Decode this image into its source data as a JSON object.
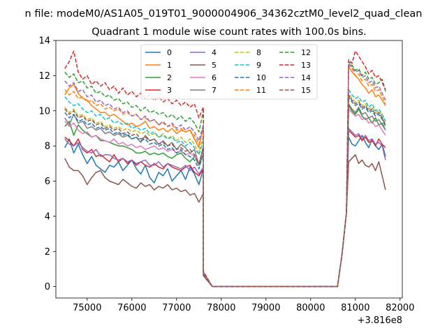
{
  "chart_data": {
    "type": "line",
    "suptitle": "n file: modeM0/AS1A05_019T01_9000004906_34362cztM0_level2_quad_clean",
    "title": "Quadrant 1 module wise count rates with 100.0s bins.",
    "xlabel": "",
    "ylabel": "",
    "x_offset_label": "+3.816e8",
    "xlim": [
      74300,
      82050
    ],
    "ylim": [
      -0.65,
      14.0
    ],
    "xticks": [
      75000,
      76000,
      77000,
      78000,
      79000,
      80000,
      81000,
      82000
    ],
    "xtick_labels": [
      "75000",
      "76000",
      "77000",
      "78000",
      "79000",
      "80000",
      "81000",
      "82000"
    ],
    "yticks": [
      0,
      2,
      4,
      6,
      8,
      10,
      12,
      14
    ],
    "ytick_labels": [
      "0",
      "2",
      "4",
      "6",
      "8",
      "10",
      "12",
      "14"
    ],
    "grid": false,
    "legend_position": "upper center",
    "x_segments": {
      "segment1": {
        "start": 74500,
        "step": 100,
        "count": 32,
        "transition": [
          77600,
          77700,
          77800
        ]
      },
      "gap_zero": {
        "start": 77800,
        "end": 80600,
        "value": 0
      },
      "segment2": {
        "start": 80600,
        "step": 100,
        "count": 12,
        "transition": [
          80600,
          80700,
          80800
        ]
      }
    },
    "series": [
      {
        "name": "0",
        "color": "#1f77b4",
        "dash": "solid",
        "seg1": [
          7.9,
          8.4,
          7.6,
          8.1,
          7.5,
          7.0,
          7.4,
          6.9,
          6.7,
          6.5,
          6.9,
          6.8,
          7.1,
          6.6,
          6.9,
          7.2,
          6.7,
          6.4,
          6.9,
          6.2,
          5.9,
          6.5,
          6.3,
          6.7,
          6.0,
          6.3,
          6.6,
          6.1,
          6.8,
          6.4,
          5.8,
          6.7
        ],
        "seg2": [
          8.5,
          8.1,
          8.0,
          8.3,
          8.6,
          8.2,
          7.9,
          8.4,
          8.0,
          7.8,
          8.1,
          7.4
        ]
      },
      {
        "name": "1",
        "color": "#ff7f0e",
        "dash": "solid",
        "seg1": [
          10.9,
          11.3,
          11.5,
          11.0,
          10.7,
          10.6,
          10.3,
          10.1,
          9.9,
          9.9,
          9.7,
          9.8,
          9.6,
          9.4,
          9.2,
          9.3,
          9.1,
          9.2,
          9.4,
          9.0,
          9.1,
          8.9,
          9.0,
          8.8,
          9.0,
          8.7,
          8.9,
          8.8,
          8.9,
          8.4,
          7.9,
          9.2
        ],
        "seg2": [
          12.5,
          12.2,
          12.0,
          11.8,
          11.5,
          11.3,
          11.0,
          11.2,
          10.8,
          10.9,
          10.6,
          10.3
        ]
      },
      {
        "name": "2",
        "color": "#2ca02c",
        "dash": "solid",
        "seg1": [
          9.1,
          9.4,
          8.6,
          9.2,
          8.9,
          8.7,
          8.5,
          8.6,
          8.3,
          8.3,
          8.2,
          8.1,
          8.0,
          8.0,
          7.9,
          7.8,
          7.6,
          7.6,
          7.7,
          7.5,
          7.6,
          7.5,
          7.6,
          7.4,
          7.3,
          7.5,
          7.6,
          7.3,
          7.1,
          7.4,
          6.9,
          7.5
        ],
        "seg2": [
          10.3,
          10.0,
          9.8,
          10.1,
          9.7,
          9.5,
          9.6,
          9.3,
          9.6,
          9.2,
          9.3,
          8.9
        ]
      },
      {
        "name": "3",
        "color": "#d62728",
        "dash": "solid",
        "seg1": [
          8.5,
          8.3,
          8.0,
          8.4,
          7.8,
          7.6,
          7.8,
          7.4,
          7.5,
          7.3,
          7.1,
          7.5,
          7.1,
          7.3,
          7.0,
          7.2,
          6.9,
          7.1,
          6.9,
          6.8,
          7.0,
          6.8,
          6.7,
          7.0,
          6.8,
          6.7,
          6.6,
          6.8,
          6.9,
          6.5,
          6.3,
          6.7
        ],
        "seg2": [
          8.9,
          8.7,
          8.5,
          8.6,
          8.3,
          8.5,
          8.2,
          8.3,
          8.0,
          8.4,
          8.1,
          7.9
        ]
      },
      {
        "name": "4",
        "color": "#9467bd",
        "dash": "solid",
        "seg1": [
          8.4,
          8.1,
          8.0,
          8.2,
          7.9,
          7.7,
          7.6,
          7.8,
          7.4,
          7.5,
          7.5,
          7.3,
          7.2,
          7.3,
          7.1,
          7.2,
          7.0,
          7.1,
          7.2,
          6.9,
          6.9,
          7.1,
          6.8,
          7.0,
          6.9,
          6.8,
          6.7,
          6.9,
          6.6,
          6.8,
          6.4,
          6.8
        ],
        "seg2": [
          9.0,
          8.8,
          8.6,
          8.7,
          8.4,
          8.6,
          8.3,
          8.4,
          8.1,
          8.2,
          8.0,
          7.2
        ]
      },
      {
        "name": "5",
        "color": "#8c564b",
        "dash": "solid",
        "seg1": [
          7.3,
          6.8,
          6.6,
          6.6,
          6.3,
          5.8,
          6.2,
          6.5,
          6.6,
          6.2,
          6.0,
          5.9,
          5.8,
          6.1,
          5.9,
          5.7,
          5.6,
          5.9,
          5.7,
          5.8,
          5.5,
          5.7,
          5.6,
          5.8,
          5.5,
          5.6,
          5.4,
          5.5,
          5.2,
          5.3,
          4.8,
          5.3
        ],
        "seg2": [
          7.1,
          7.3,
          7.5,
          7.0,
          7.2,
          6.9,
          6.8,
          7.0,
          6.6,
          7.1,
          6.3,
          5.5
        ]
      },
      {
        "name": "6",
        "color": "#e377c2",
        "dash": "solid",
        "seg1": [
          9.4,
          9.1,
          9.3,
          8.9,
          8.7,
          8.8,
          8.5,
          8.6,
          8.4,
          8.3,
          8.2,
          8.4,
          8.1,
          8.2,
          8.0,
          8.1,
          7.9,
          8.0,
          7.8,
          7.9,
          8.0,
          7.8,
          7.9,
          7.7,
          7.8,
          7.6,
          7.7,
          7.5,
          7.6,
          7.4,
          7.0,
          7.8
        ],
        "seg2": [
          10.1,
          9.9,
          9.7,
          9.8,
          9.5,
          9.6,
          9.3,
          9.4,
          9.1,
          9.2,
          8.9,
          8.6
        ]
      },
      {
        "name": "7",
        "color": "#7f7f7f",
        "dash": "solid",
        "seg1": [
          9.6,
          9.2,
          9.8,
          9.3,
          9.4,
          9.0,
          9.1,
          8.9,
          9.0,
          8.7,
          8.8,
          8.6,
          8.7,
          8.5,
          8.6,
          8.4,
          8.5,
          8.2,
          8.6,
          8.3,
          8.4,
          8.1,
          8.3,
          8.0,
          8.2,
          7.8,
          8.1,
          7.9,
          7.6,
          7.8,
          6.9,
          8.0
        ],
        "seg2": [
          10.4,
          10.1,
          9.9,
          10.2,
          9.8,
          9.9,
          9.6,
          9.7,
          9.4,
          9.5,
          9.2,
          8.9
        ]
      },
      {
        "name": "8",
        "color": "#bcbd22",
        "dash": "dashed",
        "seg1": [
          10.2,
          9.9,
          10.1,
          9.7,
          9.8,
          9.5,
          9.6,
          9.3,
          9.4,
          9.1,
          9.2,
          9.0,
          9.1,
          8.9,
          9.0,
          8.8,
          8.9,
          8.7,
          8.8,
          8.6,
          8.7,
          8.5,
          8.7,
          8.4,
          8.6,
          8.3,
          8.5,
          8.2,
          8.4,
          8.1,
          7.6,
          8.6
        ],
        "seg2": [
          11.0,
          10.7,
          10.5,
          10.6,
          10.3,
          10.4,
          10.1,
          10.2,
          9.9,
          10.0,
          9.7,
          9.2
        ]
      },
      {
        "name": "9",
        "color": "#17becf",
        "dash": "dashed",
        "seg1": [
          10.8,
          10.5,
          10.3,
          10.4,
          10.1,
          9.9,
          10.0,
          9.7,
          9.8,
          9.5,
          9.6,
          9.3,
          9.4,
          9.2,
          9.3,
          9.0,
          9.1,
          8.9,
          9.0,
          8.7,
          8.8,
          8.5,
          8.6,
          8.4,
          8.5,
          8.2,
          8.3,
          8.0,
          8.2,
          7.9,
          7.5,
          8.3
        ],
        "seg2": [
          11.2,
          10.9,
          10.7,
          10.8,
          10.5,
          10.6,
          10.2,
          10.4,
          10.0,
          10.1,
          9.8,
          9.4
        ]
      },
      {
        "name": "10",
        "color": "#1f77b4",
        "dash": "dashed",
        "seg1": [
          9.9,
          9.6,
          9.8,
          9.4,
          9.5,
          9.2,
          9.3,
          9.0,
          9.1,
          8.9,
          9.0,
          8.7,
          8.8,
          8.6,
          8.7,
          8.4,
          8.5,
          8.3,
          8.4,
          8.1,
          8.2,
          8.0,
          8.1,
          7.8,
          7.9,
          7.6,
          7.8,
          7.5,
          7.4,
          7.2,
          6.7,
          7.6
        ],
        "seg2": [
          10.8,
          10.5,
          10.3,
          10.4,
          10.1,
          10.2,
          9.9,
          10.0,
          9.7,
          9.8,
          9.5,
          9.1
        ]
      },
      {
        "name": "11",
        "color": "#ff7f0e",
        "dash": "dashed",
        "seg1": [
          11.2,
          10.9,
          11.1,
          10.7,
          10.8,
          10.5,
          10.6,
          10.3,
          10.4,
          10.1,
          10.2,
          10.0,
          10.1,
          9.8,
          9.9,
          9.7,
          9.8,
          9.5,
          9.6,
          9.4,
          9.5,
          9.2,
          9.3,
          9.1,
          9.2,
          8.9,
          9.0,
          8.8,
          8.9,
          8.6,
          8.1,
          9.0
        ],
        "seg2": [
          12.6,
          12.4,
          12.0,
          12.1,
          11.7,
          11.8,
          11.4,
          11.5,
          11.1,
          11.2,
          10.8,
          10.4
        ]
      },
      {
        "name": "12",
        "color": "#2ca02c",
        "dash": "dashed",
        "seg1": [
          12.2,
          11.9,
          12.1,
          11.6,
          11.7,
          11.3,
          11.4,
          11.0,
          11.1,
          10.8,
          10.9,
          10.6,
          10.7,
          10.4,
          10.5,
          10.2,
          10.3,
          10.0,
          10.2,
          9.9,
          10.0,
          9.8,
          9.9,
          9.6,
          9.8,
          9.5,
          9.7,
          9.4,
          9.6,
          9.3,
          8.8,
          10.0
        ],
        "seg2": [
          12.8,
          12.6,
          12.3,
          12.4,
          12.0,
          12.2,
          11.8,
          11.9,
          11.5,
          11.6,
          11.8,
          11.1
        ]
      },
      {
        "name": "13",
        "color": "#d62728",
        "dash": "dashed",
        "seg1": [
          12.4,
          12.8,
          13.4,
          12.2,
          11.8,
          12.0,
          11.5,
          11.7,
          11.4,
          11.6,
          11.2,
          11.4,
          11.0,
          11.3,
          10.9,
          11.1,
          10.8,
          11.0,
          10.7,
          10.9,
          10.6,
          10.8,
          10.5,
          10.7,
          10.4,
          10.6,
          10.3,
          10.5,
          10.2,
          10.4,
          9.6,
          10.2
        ],
        "seg2": [
          12.9,
          12.7,
          13.4,
          13.1,
          12.8,
          12.5,
          12.1,
          12.3,
          11.9,
          12.0,
          11.6,
          11.2
        ]
      },
      {
        "name": "14",
        "color": "#9467bd",
        "dash": "dashed",
        "seg1": [
          11.7,
          11.4,
          11.6,
          11.1,
          11.2,
          10.8,
          10.9,
          10.5,
          10.6,
          10.3,
          10.4,
          10.1,
          10.2,
          9.9,
          10.0,
          9.7,
          9.8,
          9.5,
          9.7,
          9.4,
          9.5,
          9.2,
          9.4,
          9.1,
          9.3,
          9.0,
          9.2,
          8.9,
          9.1,
          8.8,
          8.3,
          9.2
        ],
        "seg2": [
          12.7,
          12.5,
          12.2,
          12.3,
          11.9,
          12.0,
          11.6,
          11.7,
          11.3,
          11.4,
          11.0,
          10.6
        ]
      },
      {
        "name": "15",
        "color": "#8c564b",
        "dash": "dashed",
        "seg1": [
          10.1,
          9.8,
          10.0,
          9.6,
          9.7,
          9.4,
          9.5,
          9.2,
          9.3,
          9.0,
          9.1,
          8.9,
          9.0,
          8.7,
          8.8,
          8.6,
          8.7,
          8.4,
          8.5,
          8.3,
          8.4,
          8.1,
          8.2,
          8.0,
          8.1,
          7.8,
          7.9,
          7.7,
          7.8,
          7.5,
          7.0,
          7.9
        ],
        "seg2": [
          10.9,
          10.6,
          10.4,
          10.5,
          10.2,
          10.3,
          10.0,
          10.1,
          9.8,
          9.9,
          9.6,
          9.2
        ]
      }
    ]
  }
}
